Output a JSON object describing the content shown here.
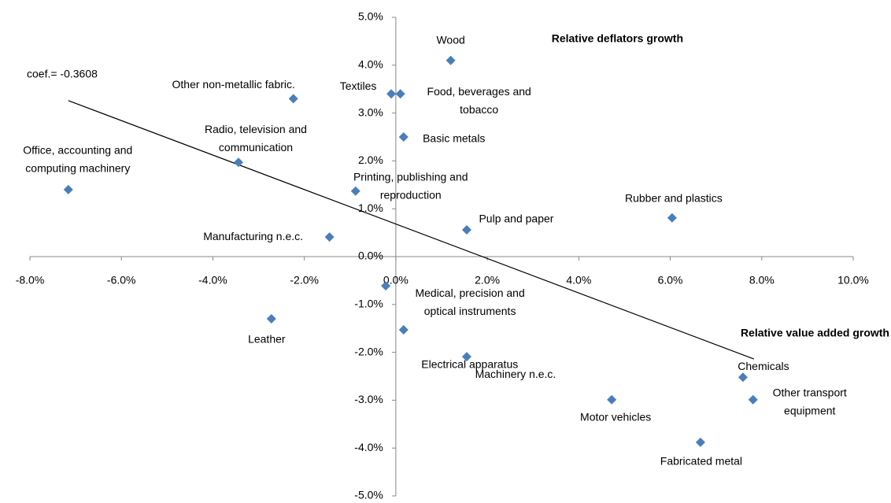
{
  "chart_data": {
    "type": "scatter",
    "x_label": "Relative value added growth",
    "y_label": "Relative deflators growth",
    "annotation": "coef.= -0.3608",
    "color": "#4a7ebb",
    "xlim": [
      -8,
      10
    ],
    "ylim": [
      -5,
      5
    ],
    "xticks": [
      {
        "value": -8,
        "label": "-8.0%"
      },
      {
        "value": -6,
        "label": "-6.0%"
      },
      {
        "value": -4,
        "label": "-4.0%"
      },
      {
        "value": -2,
        "label": "-2.0%"
      },
      {
        "value": 0,
        "label": "0.0%"
      },
      {
        "value": 2,
        "label": "2.0%"
      },
      {
        "value": 4,
        "label": "4.0%"
      },
      {
        "value": 6,
        "label": "6.0%"
      },
      {
        "value": 8,
        "label": "8.0%"
      },
      {
        "value": 10,
        "label": "10.0%"
      }
    ],
    "yticks": [
      {
        "value": -5,
        "label": "-5.0%"
      },
      {
        "value": -4,
        "label": "-4.0%"
      },
      {
        "value": -3,
        "label": "-3.0%"
      },
      {
        "value": -2,
        "label": "-2.0%"
      },
      {
        "value": -1,
        "label": "-1.0%"
      },
      {
        "value": 0,
        "label": "0.0%"
      },
      {
        "value": 1,
        "label": "1.0%"
      },
      {
        "value": 2,
        "label": "2.0%"
      },
      {
        "value": 3,
        "label": "3.0%"
      },
      {
        "value": 4,
        "label": "4.0%"
      },
      {
        "value": 5,
        "label": "5.0%"
      }
    ],
    "labels": [
      [
        "Wood"
      ],
      [
        "Textiles"
      ],
      [
        "Food, beverages and",
        "tobacco"
      ],
      [
        "Other non-metallic fabric."
      ],
      [
        "Basic metals"
      ],
      [
        "Radio, television and",
        "communication"
      ],
      [
        "Office, accounting and",
        "computing machinery"
      ],
      [
        "Printing, publishing and",
        "reproduction"
      ],
      [
        "Rubber and plastics"
      ],
      [
        "Pulp and paper"
      ],
      [
        "Manufacturing n.e.c."
      ],
      [
        "Medical, precision and",
        "optical instruments"
      ],
      [
        "Leather"
      ],
      [
        "Electrical apparatus"
      ],
      [
        "Machinery  n.e.c."
      ],
      [
        "Chemicals"
      ],
      [
        "Other transport",
        "equipment"
      ],
      [
        "Motor vehicles"
      ],
      [
        "Fabricated metal"
      ]
    ],
    "x": [
      1.2,
      -0.1,
      0.1,
      -2.24,
      0.17,
      -3.44,
      -7.16,
      -0.88,
      6.04,
      1.55,
      -1.45,
      -0.22,
      -2.72,
      0.17,
      1.55,
      7.59,
      7.81,
      4.72,
      6.66
    ],
    "y": [
      4.1,
      3.4,
      3.4,
      3.3,
      2.5,
      1.97,
      1.4,
      1.37,
      0.81,
      0.56,
      0.41,
      -0.61,
      -1.3,
      -1.53,
      -2.09,
      -2.52,
      -2.99,
      -2.99,
      -3.88
    ],
    "trendline": {
      "x": [
        -7.16,
        7.83
      ],
      "y": [
        3.26,
        -2.14
      ]
    }
  }
}
